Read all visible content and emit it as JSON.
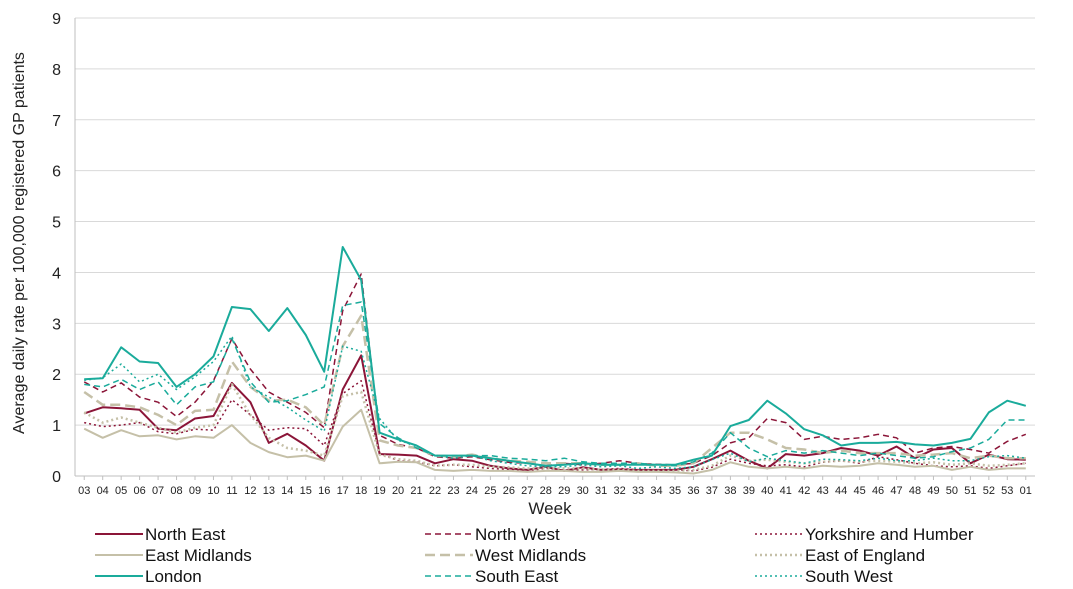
{
  "chart_data": {
    "type": "line",
    "title": "",
    "xlabel": "Week",
    "ylabel": "Average daily rate per 100,000 registered GP patients",
    "ylim": [
      0,
      9
    ],
    "yticks": [
      "0",
      "1",
      "2",
      "3",
      "4",
      "5",
      "6",
      "7",
      "8",
      "9"
    ],
    "grid": "horizontal",
    "legend_position": "bottom",
    "categories": [
      "03",
      "04",
      "05",
      "06",
      "07",
      "08",
      "09",
      "10",
      "11",
      "12",
      "13",
      "14",
      "15",
      "16",
      "17",
      "18",
      "19",
      "20",
      "21",
      "22",
      "23",
      "24",
      "25",
      "26",
      "27",
      "28",
      "29",
      "30",
      "31",
      "32",
      "33",
      "34",
      "35",
      "36",
      "37",
      "38",
      "39",
      "40",
      "41",
      "42",
      "43",
      "44",
      "45",
      "46",
      "47",
      "48",
      "49",
      "50",
      "51",
      "52",
      "53",
      "01"
    ],
    "series": [
      {
        "name": "North East",
        "color": "#8b1538",
        "dash": "solid",
        "width": 2,
        "values": [
          1.23,
          1.35,
          1.33,
          1.3,
          0.93,
          0.9,
          1.13,
          1.18,
          1.83,
          1.45,
          0.65,
          0.83,
          0.6,
          0.3,
          1.7,
          2.37,
          0.43,
          0.42,
          0.4,
          0.25,
          0.33,
          0.3,
          0.2,
          0.15,
          0.12,
          0.18,
          0.1,
          0.17,
          0.12,
          0.13,
          0.12,
          0.12,
          0.12,
          0.18,
          0.33,
          0.5,
          0.3,
          0.15,
          0.43,
          0.4,
          0.45,
          0.55,
          0.5,
          0.4,
          0.58,
          0.35,
          0.52,
          0.55,
          0.25,
          0.42,
          0.33,
          0.32
        ]
      },
      {
        "name": "North West",
        "color": "#8b1538",
        "dash": "6,4",
        "width": 1.5,
        "values": [
          1.85,
          1.65,
          1.83,
          1.55,
          1.45,
          1.17,
          1.45,
          1.87,
          2.7,
          2.1,
          1.65,
          1.45,
          1.25,
          0.95,
          3.25,
          3.97,
          0.8,
          0.62,
          0.55,
          0.38,
          0.35,
          0.38,
          0.32,
          0.27,
          0.25,
          0.2,
          0.25,
          0.22,
          0.25,
          0.3,
          0.25,
          0.23,
          0.22,
          0.25,
          0.4,
          0.65,
          0.75,
          1.13,
          1.05,
          0.72,
          0.78,
          0.72,
          0.75,
          0.82,
          0.75,
          0.45,
          0.55,
          0.58,
          0.52,
          0.45,
          0.68,
          0.82
        ]
      },
      {
        "name": "Yorkshire and Humber",
        "color": "#8b1538",
        "dash": "2,3",
        "width": 1.5,
        "values": [
          1.05,
          0.97,
          1.0,
          1.05,
          0.87,
          0.83,
          0.92,
          0.9,
          1.5,
          1.2,
          0.9,
          0.95,
          0.93,
          0.6,
          1.62,
          1.87,
          0.45,
          0.3,
          0.28,
          0.2,
          0.22,
          0.18,
          0.15,
          0.13,
          0.1,
          0.15,
          0.12,
          0.12,
          0.13,
          0.15,
          0.12,
          0.1,
          0.12,
          0.1,
          0.17,
          0.33,
          0.25,
          0.2,
          0.22,
          0.18,
          0.27,
          0.3,
          0.25,
          0.38,
          0.32,
          0.25,
          0.2,
          0.18,
          0.2,
          0.15,
          0.2,
          0.25
        ]
      },
      {
        "name": "East Midlands",
        "color": "#c5c0a8",
        "dash": "solid",
        "width": 2,
        "values": [
          0.93,
          0.75,
          0.9,
          0.78,
          0.8,
          0.72,
          0.78,
          0.75,
          1.0,
          0.65,
          0.47,
          0.37,
          0.4,
          0.3,
          0.97,
          1.3,
          0.25,
          0.28,
          0.27,
          0.12,
          0.1,
          0.12,
          0.1,
          0.1,
          0.08,
          0.1,
          0.1,
          0.08,
          0.08,
          0.1,
          0.08,
          0.08,
          0.07,
          0.05,
          0.12,
          0.27,
          0.18,
          0.15,
          0.18,
          0.15,
          0.2,
          0.18,
          0.2,
          0.25,
          0.22,
          0.18,
          0.2,
          0.12,
          0.18,
          0.12,
          0.15,
          0.15
        ]
      },
      {
        "name": "West Midlands",
        "color": "#c5c0a8",
        "dash": "10,5",
        "width": 2.5,
        "values": [
          1.65,
          1.4,
          1.4,
          1.35,
          1.2,
          1.0,
          1.28,
          1.3,
          2.25,
          1.75,
          1.48,
          1.5,
          1.35,
          1.0,
          2.55,
          3.15,
          0.7,
          0.6,
          0.55,
          0.4,
          0.38,
          0.42,
          0.35,
          0.3,
          0.28,
          0.25,
          0.25,
          0.25,
          0.22,
          0.22,
          0.25,
          0.2,
          0.2,
          0.25,
          0.55,
          0.85,
          0.85,
          0.72,
          0.55,
          0.52,
          0.45,
          0.5,
          0.45,
          0.45,
          0.45,
          0.4,
          0.42,
          0.45,
          0.35,
          0.4,
          0.35,
          0.35
        ]
      },
      {
        "name": "East of England",
        "color": "#c5c0a8",
        "dash": "2,3",
        "width": 2.5,
        "values": [
          1.25,
          1.05,
          1.15,
          1.05,
          0.95,
          0.85,
          0.95,
          1.0,
          1.8,
          1.2,
          0.75,
          0.55,
          0.5,
          0.4,
          1.57,
          1.65,
          0.42,
          0.33,
          0.3,
          0.2,
          0.22,
          0.22,
          0.18,
          0.17,
          0.15,
          0.15,
          0.15,
          0.15,
          0.12,
          0.12,
          0.1,
          0.1,
          0.1,
          0.12,
          0.2,
          0.4,
          0.3,
          0.32,
          0.28,
          0.25,
          0.28,
          0.3,
          0.28,
          0.3,
          0.28,
          0.25,
          0.27,
          0.22,
          0.25,
          0.2,
          0.22,
          0.25
        ]
      },
      {
        "name": "London",
        "color": "#1aab9b",
        "dash": "solid",
        "width": 2,
        "values": [
          1.9,
          1.92,
          2.53,
          2.25,
          2.22,
          1.75,
          2.0,
          2.35,
          3.32,
          3.28,
          2.85,
          3.3,
          2.77,
          2.05,
          4.5,
          3.85,
          0.85,
          0.72,
          0.6,
          0.4,
          0.4,
          0.4,
          0.35,
          0.3,
          0.25,
          0.2,
          0.22,
          0.25,
          0.22,
          0.22,
          0.22,
          0.22,
          0.22,
          0.32,
          0.4,
          0.98,
          1.1,
          1.48,
          1.23,
          0.92,
          0.8,
          0.6,
          0.65,
          0.65,
          0.67,
          0.62,
          0.6,
          0.65,
          0.73,
          1.25,
          1.48,
          1.38
        ]
      },
      {
        "name": "South East",
        "color": "#1aab9b",
        "dash": "6,4",
        "width": 1.5,
        "values": [
          1.8,
          1.75,
          1.9,
          1.7,
          1.85,
          1.4,
          1.75,
          1.85,
          2.7,
          1.85,
          1.45,
          1.48,
          1.6,
          1.75,
          3.35,
          3.42,
          1.03,
          0.75,
          0.55,
          0.4,
          0.4,
          0.4,
          0.4,
          0.35,
          0.33,
          0.3,
          0.35,
          0.28,
          0.25,
          0.25,
          0.25,
          0.22,
          0.2,
          0.28,
          0.45,
          0.85,
          0.55,
          0.38,
          0.5,
          0.45,
          0.5,
          0.45,
          0.4,
          0.45,
          0.4,
          0.35,
          0.38,
          0.48,
          0.55,
          0.72,
          1.1,
          1.1
        ]
      },
      {
        "name": "South West",
        "color": "#1aab9b",
        "dash": "2,3",
        "width": 1.5,
        "values": [
          1.88,
          1.93,
          2.2,
          1.85,
          2.0,
          1.7,
          1.95,
          2.25,
          2.75,
          1.75,
          1.55,
          1.35,
          1.1,
          0.88,
          2.55,
          2.45,
          1.13,
          0.7,
          0.6,
          0.4,
          0.35,
          0.4,
          0.3,
          0.25,
          0.2,
          0.18,
          0.18,
          0.22,
          0.18,
          0.2,
          0.15,
          0.18,
          0.15,
          0.18,
          0.32,
          0.45,
          0.28,
          0.35,
          0.3,
          0.25,
          0.33,
          0.32,
          0.3,
          0.35,
          0.3,
          0.3,
          0.35,
          0.3,
          0.3,
          0.38,
          0.4,
          0.35
        ]
      }
    ]
  }
}
